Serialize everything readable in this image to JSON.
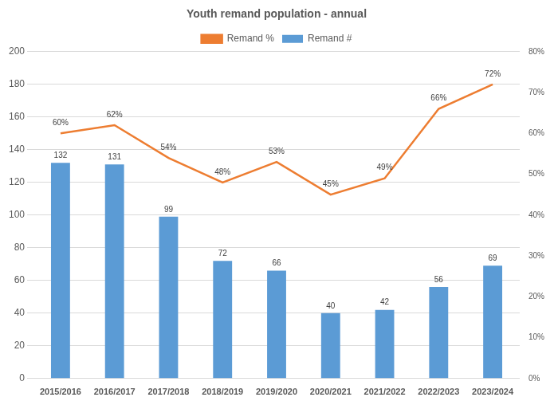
{
  "chart_data": {
    "type": "bar",
    "title": "Youth remand population - annual",
    "categories": [
      "2015/2016",
      "2016/2017",
      "2017/2018",
      "2018/2019",
      "2019/2020",
      "2020/2021",
      "2021/2022",
      "2022/2023",
      "2023/2024"
    ],
    "series": [
      {
        "name": "Remand #",
        "type": "bar",
        "color": "#5b9bd5",
        "values": [
          132,
          131,
          99,
          72,
          66,
          40,
          42,
          56,
          69
        ]
      },
      {
        "name": "Remand %",
        "type": "line",
        "color": "#ed7d31",
        "axis": "y2",
        "values": [
          60,
          62,
          54,
          48,
          53,
          45,
          49,
          66,
          72
        ],
        "value_labels": [
          "60%",
          "62%",
          "54%",
          "48%",
          "53%",
          "45%",
          "49%",
          "66%",
          "72%"
        ]
      }
    ],
    "ylim": [
      0,
      200
    ],
    "yticks": [
      0,
      20,
      40,
      60,
      80,
      100,
      120,
      140,
      160,
      180,
      200
    ],
    "y2lim": [
      0,
      80
    ],
    "y2ticks": [
      {
        "value": 0,
        "label": "0%"
      },
      {
        "value": 10,
        "label": "10%"
      },
      {
        "value": 20,
        "label": "20%"
      },
      {
        "value": 30,
        "label": "30%"
      },
      {
        "value": 40,
        "label": "40%"
      },
      {
        "value": 50,
        "label": "50%"
      },
      {
        "value": 60,
        "label": "60%"
      },
      {
        "value": 70,
        "label": "70%"
      },
      {
        "value": 80,
        "label": "80%"
      }
    ],
    "grid": true,
    "legend": "top",
    "data_labels": true
  }
}
